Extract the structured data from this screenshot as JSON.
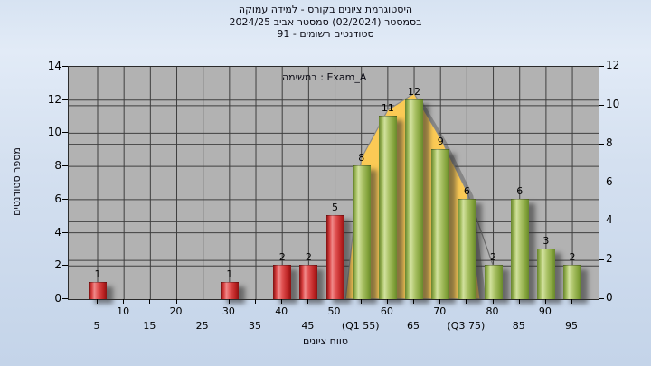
{
  "title": {
    "line1": "היסטוגרמת ציונים בקורס - למידה עמוקה",
    "line2": "בסמסטר (02/2024) סמסטר אביב 2024/25",
    "line3": "סטודנטים רשומים - 91"
  },
  "legend_label": "במשימה : Exam_A",
  "x_axis": {
    "title": "טווח ציונים"
  },
  "y_axis": {
    "title": "מספר סטודנטים"
  },
  "colors": {
    "red_bar": "#cf2b2b",
    "green_bar": "#98b74d",
    "area_fill": "#fbca55",
    "area_stroke": "#8a8a8a",
    "plot_bg": "#b2b2b2",
    "grid": "#3f3f3f",
    "background_top": "#d7e3f2",
    "background_bottom": "#c4d4e9"
  },
  "chart_data": {
    "type": "bar",
    "title": "היסטוגרמת ציונים בקורס - למידה עמוקה בסמסטר (02/2024) סמסטר אביב 2024/25 | סטודנטים רשומים - 91",
    "legend": "במשימה : Exam_A",
    "xlabel": "טווח ציונים",
    "ylabel": "מספר סטודנטים",
    "categories": [
      5,
      10,
      15,
      20,
      25,
      30,
      35,
      40,
      45,
      50,
      55,
      60,
      65,
      70,
      75,
      80,
      85,
      90,
      95
    ],
    "values": [
      1,
      0,
      0,
      0,
      0,
      1,
      0,
      2,
      2,
      5,
      8,
      11,
      12,
      9,
      6,
      2,
      6,
      3,
      2
    ],
    "bar_color_rule": "red for grades 5-50, green for grades 55-95",
    "red_max_category": 50,
    "x_tick_row_upper": [
      "10",
      "20",
      "30",
      "40",
      "50",
      "60",
      "70",
      "80",
      "90"
    ],
    "x_tick_row_lower": [
      "5",
      "15",
      "25",
      "35",
      "45",
      "(Q1 55)",
      "65",
      "(Q3 75)",
      "85",
      "95"
    ],
    "y_left_ticks": [
      0,
      2,
      4,
      6,
      8,
      10,
      12,
      14
    ],
    "y_right_ticks": [
      0,
      2,
      4,
      6,
      8,
      10,
      12
    ],
    "ylim_left": [
      0,
      14
    ],
    "ylim_right": [
      0,
      12
    ],
    "grid": true,
    "overlay_area": {
      "type": "area",
      "comment_role": "fitted distribution curve behind green bars",
      "x": [
        52,
        55,
        60,
        65,
        70,
        75,
        77.5
      ],
      "y": [
        0,
        8.5,
        11.4,
        12.4,
        9.7,
        6.5,
        0
      ],
      "tail_line_to": [
        80,
        2
      ]
    }
  }
}
